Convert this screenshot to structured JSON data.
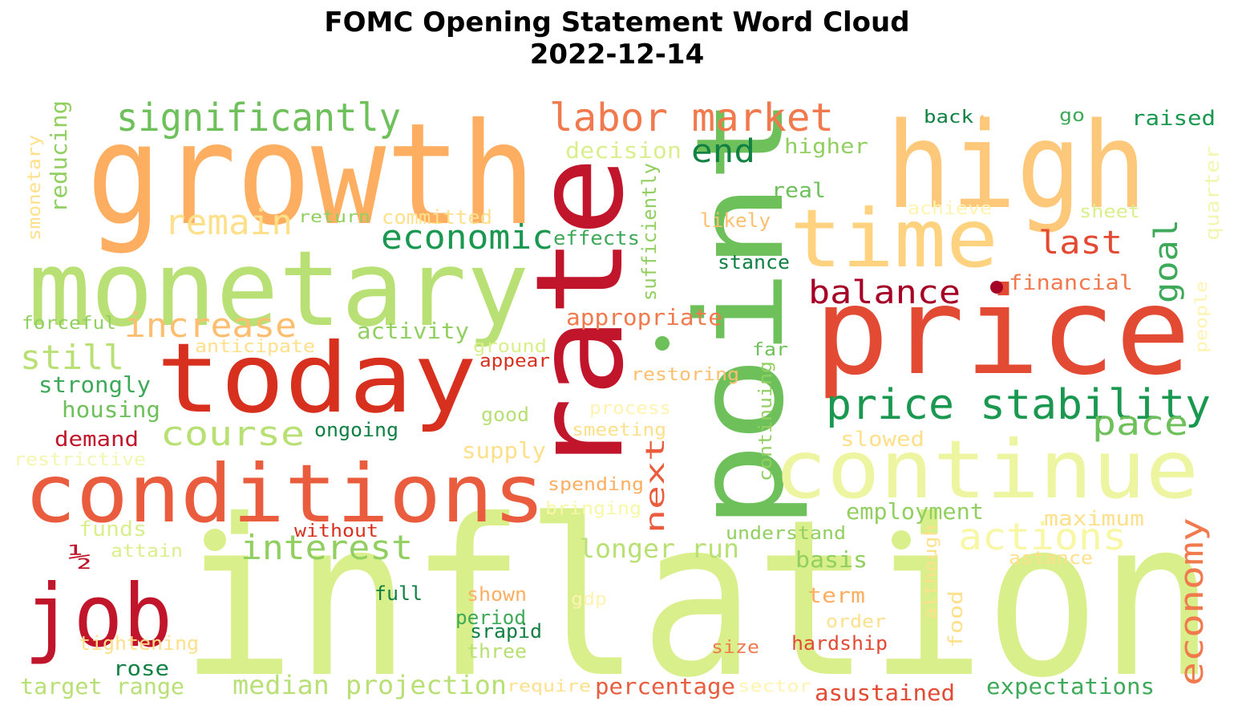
{
  "title": {
    "line1": "FOMC Opening Statement Word Cloud",
    "line2": "2022-12-14"
  },
  "words": [
    {
      "text": "inflation",
      "color": "#d9ef8b"
    },
    {
      "text": "growth",
      "color": "#fdae61"
    },
    {
      "text": "rate",
      "color": "#c0152a"
    },
    {
      "text": "point",
      "color": "#6ec05b"
    },
    {
      "text": "price",
      "color": "#e34a33"
    },
    {
      "text": "high",
      "color": "#fec87a"
    },
    {
      "text": "monetary",
      "color": "#b8e074"
    },
    {
      "text": "today",
      "color": "#d7301f"
    },
    {
      "text": "conditions",
      "color": "#ea5c3e"
    },
    {
      "text": "time",
      "color": "#fed27f"
    },
    {
      "text": "continue",
      "color": "#edf5a0"
    },
    {
      "text": "job",
      "color": "#c0152a"
    },
    {
      "text": "significantly",
      "color": "#6ec05b"
    },
    {
      "text": "labor market",
      "color": "#f07a4d"
    },
    {
      "text": "price stability",
      "color": "#1a9850"
    },
    {
      "text": "remain",
      "color": "#fee08b"
    },
    {
      "text": "economic",
      "color": "#1a9850"
    },
    {
      "text": "increase",
      "color": "#fdbf6f"
    },
    {
      "text": "still",
      "color": "#b8e074"
    },
    {
      "text": "course",
      "color": "#b8e074"
    },
    {
      "text": "interest",
      "color": "#91cf60"
    },
    {
      "text": "balance",
      "color": "#a50026"
    },
    {
      "text": "last",
      "color": "#e34a33"
    },
    {
      "text": "end",
      "color": "#118043"
    },
    {
      "text": "actions",
      "color": "#f7f7a5"
    },
    {
      "text": "pace",
      "color": "#6ec05b"
    },
    {
      "text": "goal",
      "color": "#3ea958"
    },
    {
      "text": "economy",
      "color": "#f07a4d"
    },
    {
      "text": "longer run",
      "color": "#b8e074"
    },
    {
      "text": "median projection",
      "color": "#b8e074"
    },
    {
      "text": "next",
      "color": "#ea5c3e"
    },
    {
      "text": "target range",
      "color": "#b8e074"
    },
    {
      "text": "employment",
      "color": "#91cf60"
    },
    {
      "text": "expectations",
      "color": "#3ea958"
    },
    {
      "text": "percentage",
      "color": "#ea5c3e"
    },
    {
      "text": "asustained",
      "color": "#e34a33"
    },
    {
      "text": "decision",
      "color": "#d9ef8b"
    },
    {
      "text": "higher",
      "color": "#91cf60"
    },
    {
      "text": "real",
      "color": "#6ec05b"
    },
    {
      "text": "likely",
      "color": "#fdbf6f"
    },
    {
      "text": "stance",
      "color": "#118043"
    },
    {
      "text": "financial",
      "color": "#f07a4d"
    },
    {
      "text": "appropriate",
      "color": "#f07a4d"
    },
    {
      "text": "activity",
      "color": "#91cf60"
    },
    {
      "text": "sufficiently",
      "color": "#91cf60"
    },
    {
      "text": "effects",
      "color": "#3ea958"
    },
    {
      "text": "committed",
      "color": "#fee08b"
    },
    {
      "text": "return",
      "color": "#91cf60"
    },
    {
      "text": "reducing",
      "color": "#91cf60"
    },
    {
      "text": "smonetary",
      "color": "#fee08b"
    },
    {
      "text": "forceful",
      "color": "#91cf60"
    },
    {
      "text": "anticipate",
      "color": "#fee08b"
    },
    {
      "text": "ground",
      "color": "#d9ef8b"
    },
    {
      "text": "appear",
      "color": "#d7301f"
    },
    {
      "text": "far",
      "color": "#6ec05b"
    },
    {
      "text": "restoring",
      "color": "#fdbf6f"
    },
    {
      "text": "continuing",
      "color": "#91cf60"
    },
    {
      "text": "strongly",
      "color": "#3ea958"
    },
    {
      "text": "housing",
      "color": "#6ec05b"
    },
    {
      "text": "demand",
      "color": "#c0152a"
    },
    {
      "text": "ongoing",
      "color": "#118043"
    },
    {
      "text": "good",
      "color": "#b8e074"
    },
    {
      "text": "process",
      "color": "#fff3b0"
    },
    {
      "text": "smeeting",
      "color": "#fee08b"
    },
    {
      "text": "restrictive",
      "color": "#f2f7b0"
    },
    {
      "text": "supply",
      "color": "#fee08b"
    },
    {
      "text": "slowed",
      "color": "#fee08b"
    },
    {
      "text": "spending",
      "color": "#fdae61"
    },
    {
      "text": "bringing",
      "color": "#f7f7a5"
    },
    {
      "text": "funds",
      "color": "#d9ef8b"
    },
    {
      "text": "without",
      "color": "#d7301f"
    },
    {
      "text": "½",
      "color": "#c0152a"
    },
    {
      "text": "attain",
      "color": "#d9ef8b"
    },
    {
      "text": "understand",
      "color": "#91cf60"
    },
    {
      "text": "maximum",
      "color": "#fee08b"
    },
    {
      "text": "basis",
      "color": "#91cf60"
    },
    {
      "text": "astance",
      "color": "#fee08b"
    },
    {
      "text": "although",
      "color": "#fee08b"
    },
    {
      "text": "full",
      "color": "#118043"
    },
    {
      "text": "shown",
      "color": "#fdae61"
    },
    {
      "text": "gdp",
      "color": "#fff3b0"
    },
    {
      "text": "term",
      "color": "#fdae61"
    },
    {
      "text": "period",
      "color": "#3ea958"
    },
    {
      "text": "srapid",
      "color": "#118043"
    },
    {
      "text": "order",
      "color": "#fee08b"
    },
    {
      "text": "food",
      "color": "#fee08b"
    },
    {
      "text": "tightening",
      "color": "#fee08b"
    },
    {
      "text": "three",
      "color": "#b8e074"
    },
    {
      "text": "size",
      "color": "#f07a4d"
    },
    {
      "text": "hardship",
      "color": "#e34a33"
    },
    {
      "text": "rose",
      "color": "#118043"
    },
    {
      "text": "require",
      "color": "#fee08b"
    },
    {
      "text": "sector",
      "color": "#fff3b0"
    },
    {
      "text": "back",
      "color": "#118043"
    },
    {
      "text": "go",
      "color": "#3ea958"
    },
    {
      "text": "raised",
      "color": "#1a9850"
    },
    {
      "text": "achieve",
      "color": "#fff3b0"
    },
    {
      "text": "sheet",
      "color": "#d9ef8b"
    },
    {
      "text": "quarter",
      "color": "#f2f7b0"
    },
    {
      "text": "people",
      "color": "#fff3b0"
    },
    {
      "text": ".",
      "color": "#fdbf6f"
    }
  ]
}
